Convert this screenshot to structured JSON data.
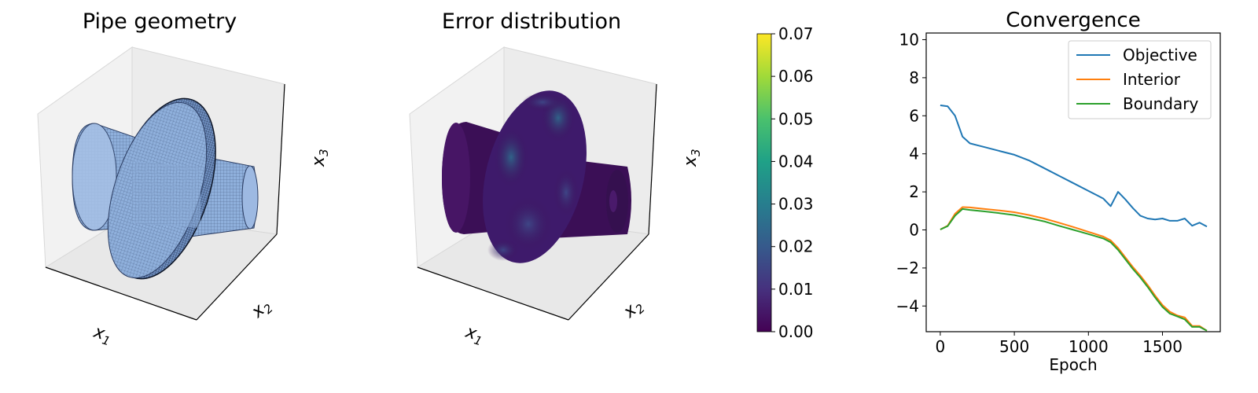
{
  "figure": {
    "panels": [
      {
        "title": "Pipe geometry",
        "axis_labels": {
          "x1": "x",
          "x1_sub": "1",
          "x2": "x",
          "x2_sub": "2",
          "x3": "x",
          "x3_sub": "3"
        }
      },
      {
        "title": "Error distribution",
        "axis_labels": {
          "x1": "x",
          "x1_sub": "1",
          "x2": "x",
          "x2_sub": "2",
          "x3": "x",
          "x3_sub": "3"
        }
      }
    ],
    "colorbar": {
      "colormap": "viridis",
      "range": [
        0.0,
        0.07
      ],
      "ticks": [
        "0.00",
        "0.01",
        "0.02",
        "0.03",
        "0.04",
        "0.05",
        "0.06",
        "0.07"
      ]
    },
    "colors": {
      "pipe_fill": "#8fb0dc",
      "pipe_edge": "#1b2a44",
      "error_base": "#3b0f56",
      "pane": "#f2f2f2"
    }
  },
  "chart_data": [
    {
      "type": "line",
      "title": "Convergence",
      "xlabel": "Epoch",
      "ylabel": "",
      "xlim": [
        -95,
        1890
      ],
      "ylim": [
        -5.35,
        10.35
      ],
      "xticks": [
        0,
        500,
        1000,
        1500
      ],
      "yticks": [
        -4,
        -2,
        0,
        2,
        4,
        6,
        8,
        10
      ],
      "xtick_labels": [
        "0",
        "500",
        "1000",
        "1500"
      ],
      "ytick_labels": [
        "−4",
        "−2",
        "0",
        "2",
        "4",
        "6",
        "8",
        "10"
      ],
      "legend_position": "top-right",
      "grid": false,
      "series": [
        {
          "name": "Objective",
          "color": "#1f77b4",
          "x": [
            0,
            50,
            100,
            150,
            200,
            250,
            300,
            400,
            500,
            600,
            700,
            800,
            900,
            1000,
            1100,
            1150,
            1200,
            1250,
            1300,
            1350,
            1400,
            1450,
            1500,
            1550,
            1600,
            1650,
            1700,
            1750,
            1800
          ],
          "y": [
            6.55,
            6.5,
            6.0,
            4.9,
            4.55,
            4.45,
            4.35,
            4.15,
            3.95,
            3.65,
            3.25,
            2.85,
            2.45,
            2.05,
            1.65,
            1.25,
            2.0,
            1.6,
            1.15,
            0.75,
            0.6,
            0.55,
            0.6,
            0.48,
            0.48,
            0.6,
            0.22,
            0.38,
            0.18
          ]
        },
        {
          "name": "Interior",
          "color": "#ff7f0e",
          "x": [
            0,
            50,
            100,
            150,
            200,
            300,
            400,
            500,
            600,
            700,
            800,
            900,
            1000,
            1100,
            1150,
            1200,
            1250,
            1300,
            1350,
            1400,
            1450,
            1500,
            1550,
            1600,
            1650,
            1700,
            1750,
            1800
          ],
          "y": [
            0.02,
            0.22,
            0.85,
            1.2,
            1.18,
            1.1,
            1.02,
            0.93,
            0.78,
            0.6,
            0.38,
            0.15,
            -0.1,
            -0.35,
            -0.55,
            -0.95,
            -1.45,
            -1.95,
            -2.4,
            -2.9,
            -3.45,
            -3.95,
            -4.3,
            -4.5,
            -4.6,
            -5.05,
            -5.05,
            -5.3
          ]
        },
        {
          "name": "Boundary",
          "color": "#2ca02c",
          "x": [
            0,
            50,
            100,
            150,
            200,
            300,
            400,
            500,
            600,
            700,
            800,
            900,
            1000,
            1100,
            1150,
            1200,
            1250,
            1300,
            1350,
            1400,
            1450,
            1500,
            1550,
            1600,
            1650,
            1700,
            1750,
            1800
          ],
          "y": [
            0.02,
            0.2,
            0.75,
            1.1,
            1.05,
            0.97,
            0.88,
            0.78,
            0.62,
            0.45,
            0.22,
            0.0,
            -0.22,
            -0.45,
            -0.65,
            -1.05,
            -1.55,
            -2.05,
            -2.5,
            -3.0,
            -3.55,
            -4.05,
            -4.4,
            -4.55,
            -4.7,
            -5.1,
            -5.1,
            -5.3
          ]
        }
      ]
    }
  ]
}
